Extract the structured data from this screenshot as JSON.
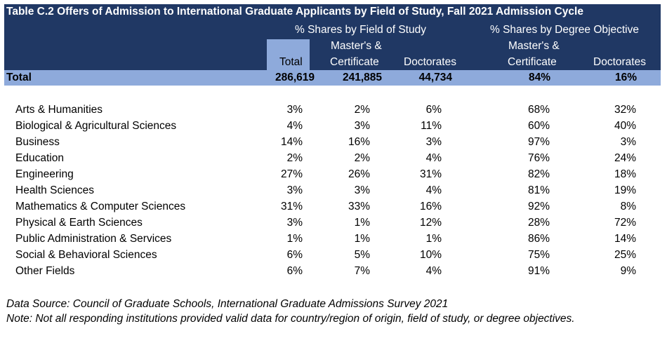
{
  "title": "Table C.2 Offers of Admission to International Graduate Applicants by Field of Study, Fall 2021 Admission Cycle",
  "headers": {
    "group_field": "% Shares by Field of Study",
    "group_degree": "% Shares by Degree Objective",
    "col_total": "Total",
    "col_mc_line1": "Master's &",
    "col_mc_line2": "Certificate",
    "col_doc": "Doctorates",
    "col_mc2_line1": "Master's &",
    "col_mc2_line2": "Certificate",
    "col_doc2": "Doctorates"
  },
  "total_row": {
    "label": "Total",
    "total": "286,619",
    "mc": "241,885",
    "doc": "44,734",
    "pct_mc": "84%",
    "pct_doc": "16%"
  },
  "rows": [
    {
      "label": "Arts & Humanities",
      "total": "3%",
      "mc": "2%",
      "doc": "6%",
      "pct_mc": "68%",
      "pct_doc": "32%"
    },
    {
      "label": "Biological & Agricultural Sciences",
      "total": "4%",
      "mc": "3%",
      "doc": "11%",
      "pct_mc": "60%",
      "pct_doc": "40%"
    },
    {
      "label": "Business",
      "total": "14%",
      "mc": "16%",
      "doc": "3%",
      "pct_mc": "97%",
      "pct_doc": "3%"
    },
    {
      "label": "Education",
      "total": "2%",
      "mc": "2%",
      "doc": "4%",
      "pct_mc": "76%",
      "pct_doc": "24%"
    },
    {
      "label": "Engineering",
      "total": "27%",
      "mc": "26%",
      "doc": "31%",
      "pct_mc": "82%",
      "pct_doc": "18%"
    },
    {
      "label": "Health Sciences",
      "total": "3%",
      "mc": "3%",
      "doc": "4%",
      "pct_mc": "81%",
      "pct_doc": "19%"
    },
    {
      "label": "Mathematics & Computer Sciences",
      "total": "31%",
      "mc": "33%",
      "doc": "16%",
      "pct_mc": "92%",
      "pct_doc": "8%"
    },
    {
      "label": "Physical & Earth Sciences",
      "total": "3%",
      "mc": "1%",
      "doc": "12%",
      "pct_mc": "28%",
      "pct_doc": "72%"
    },
    {
      "label": "Public Administration & Services",
      "total": "1%",
      "mc": "1%",
      "doc": "1%",
      "pct_mc": "86%",
      "pct_doc": "14%"
    },
    {
      "label": "Social & Behavioral Sciences",
      "total": "6%",
      "mc": "5%",
      "doc": "10%",
      "pct_mc": "75%",
      "pct_doc": "25%"
    },
    {
      "label": "Other Fields",
      "total": "6%",
      "mc": "7%",
      "doc": "4%",
      "pct_mc": "91%",
      "pct_doc": "9%"
    }
  ],
  "notes": {
    "source": "Data Source: Council of Graduate Schools, International Graduate Admissions Survey 2021",
    "note": "Note: Not all responding institutions provided valid data for country/region of origin, field of study, or degree objectives."
  },
  "colors": {
    "header_bg": "#203864",
    "highlight_bg": "#8eaadb"
  }
}
